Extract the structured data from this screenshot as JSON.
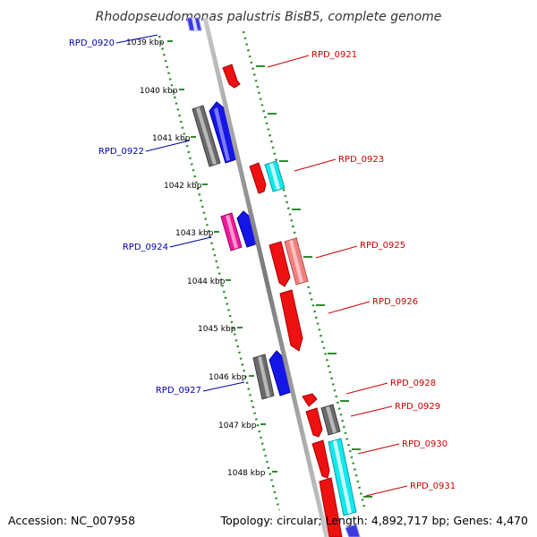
{
  "title": "Rhodopseudomonas palustris BisB5, complete genome",
  "footer": {
    "accession": "Accession: NC_007958",
    "topology": "Topology: circular; Length: 4,892,717 bp; Genes: 4,470"
  },
  "colors": {
    "axis": "#808080",
    "tick": "#2e8b2e",
    "left_label": "#0000aa",
    "right_label": "#cc0000"
  },
  "kbp_labels": [
    "1039 kbp",
    "1040 kbp",
    "1041 kbp",
    "1042 kbp",
    "1043 kbp",
    "1044 kbp",
    "1045 kbp",
    "1046 kbp",
    "1047 kbp",
    "1048 kbp"
  ],
  "gene_labels_left": [
    "RPD_0920",
    "RPD_0922",
    "RPD_0924",
    "RPD_0927"
  ],
  "gene_labels_right": [
    "RPD_0921",
    "RPD_0923",
    "RPD_0925",
    "RPD_0926",
    "RPD_0928",
    "RPD_0929",
    "RPD_0930",
    "RPD_0931"
  ]
}
